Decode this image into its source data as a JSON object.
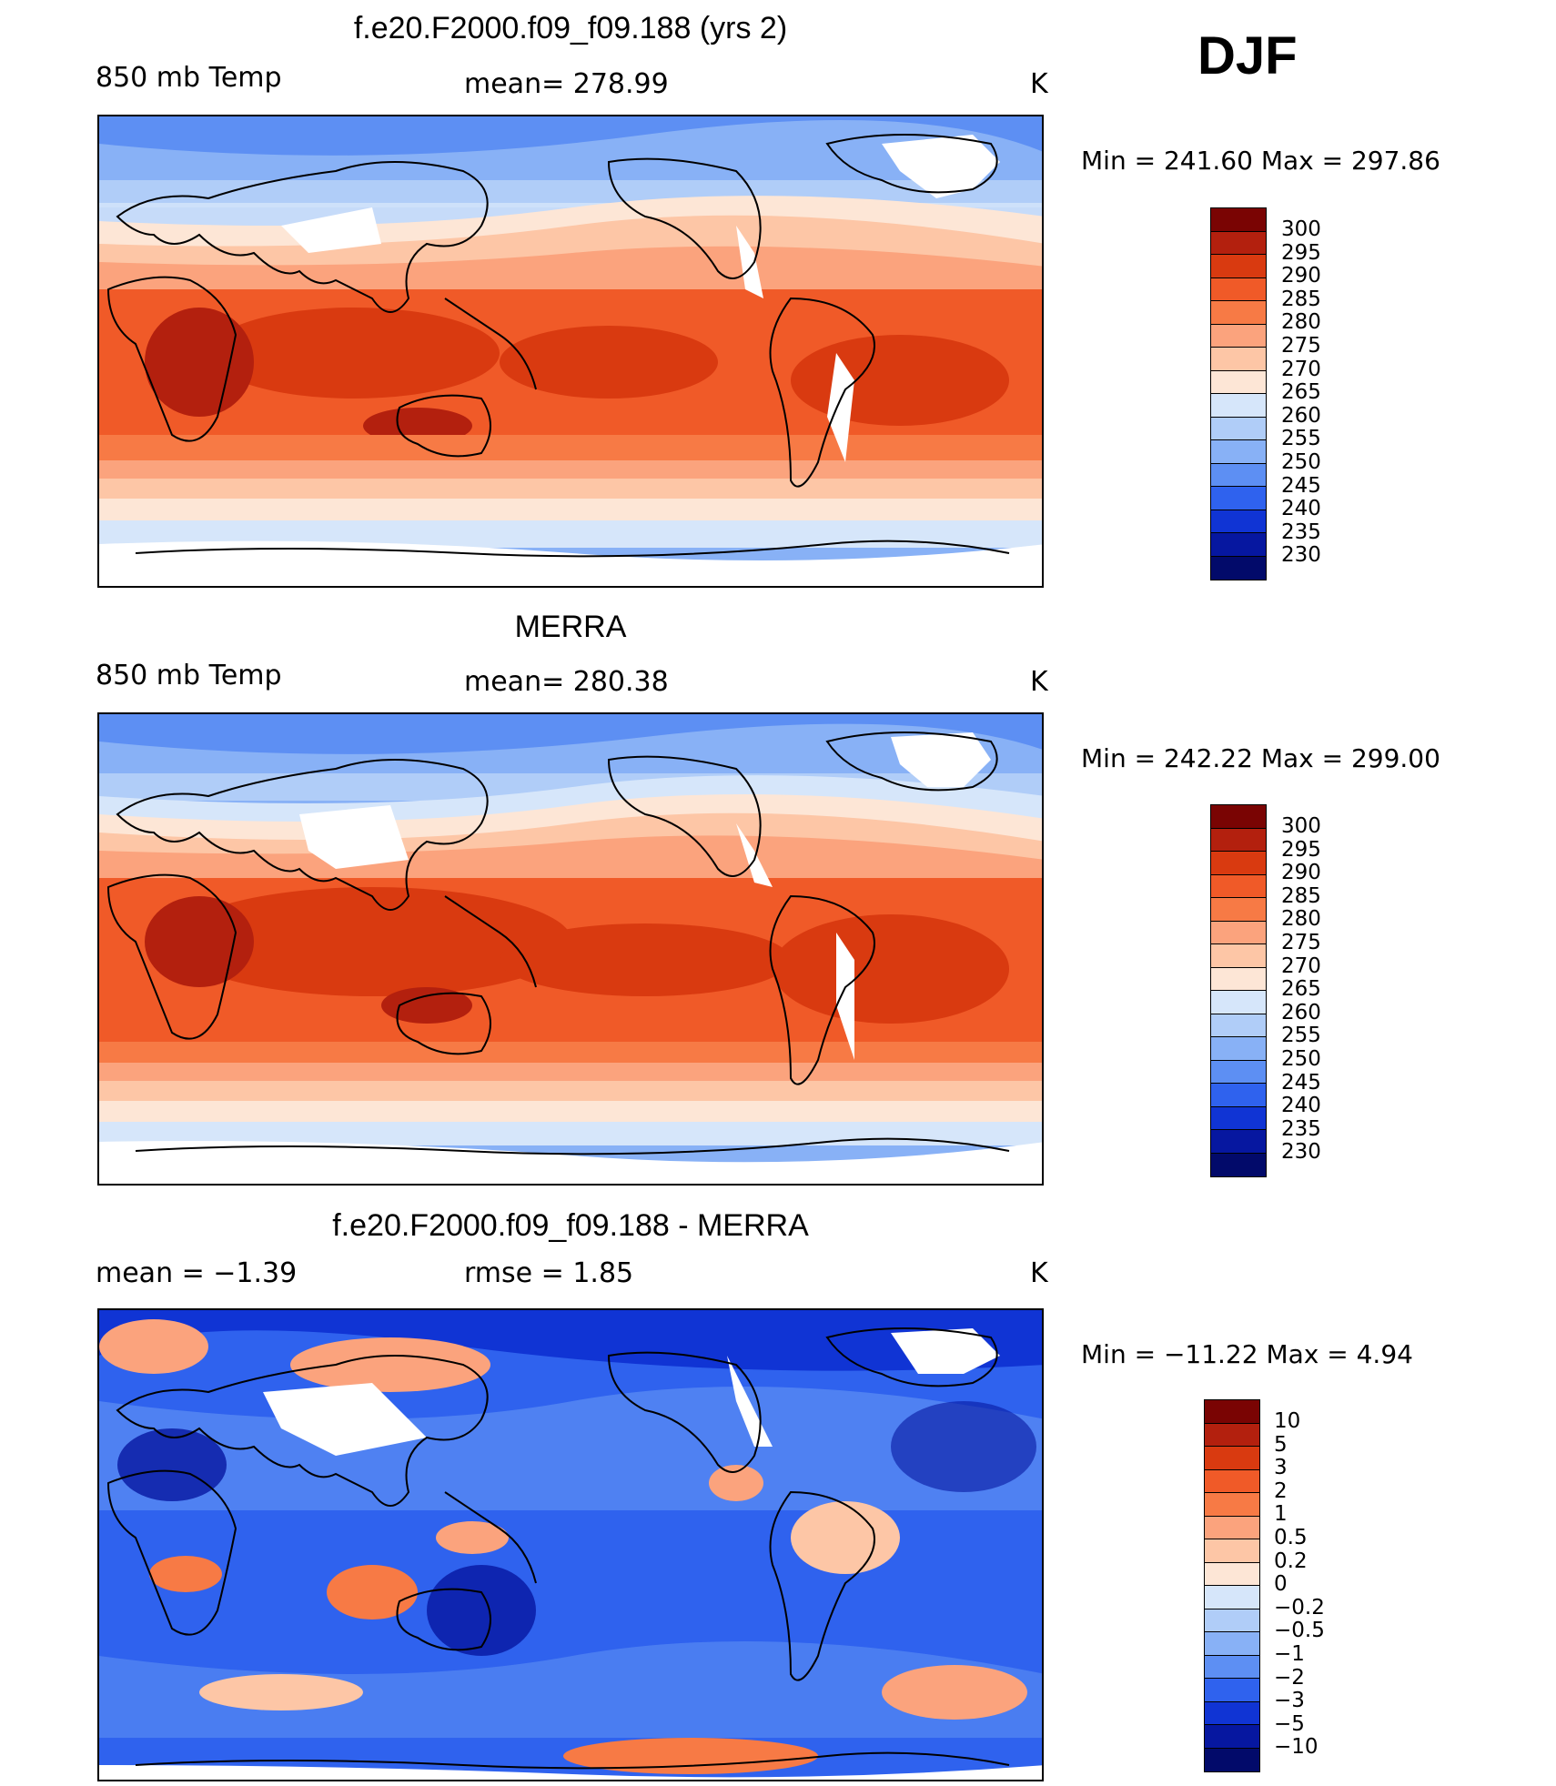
{
  "season": "DJF",
  "panels": [
    {
      "title": "f.e20.F2000.f09_f09.188 (yrs 2)",
      "left_label": "850 mb Temp",
      "center_label": "mean= 278.99",
      "units": "K",
      "min_max": "Min = 241.60 Max = 297.86",
      "colorbar": {
        "labels": [
          "300",
          "295",
          "290",
          "285",
          "280",
          "275",
          "270",
          "265",
          "260",
          "255",
          "250",
          "245",
          "240",
          "235",
          "230"
        ],
        "colors": [
          "#7a0403",
          "#b3200e",
          "#d93a10",
          "#f05a28",
          "#f77a45",
          "#fba37d",
          "#fdc6a6",
          "#fde6d6",
          "#d6e6fa",
          "#b0cdf8",
          "#88b1f6",
          "#5d8ff3",
          "#2f62ee",
          "#1034d4",
          "#0617a0",
          "#020a6a"
        ]
      },
      "chart_data": {
        "type": "filled-contour-map",
        "variable": "850 mb Temperature",
        "units": "K",
        "mean": 278.99,
        "min": 241.6,
        "max": 297.86,
        "contour_levels": [
          230,
          235,
          240,
          245,
          250,
          255,
          260,
          265,
          270,
          275,
          280,
          285,
          290,
          295,
          300
        ]
      }
    },
    {
      "title": "MERRA",
      "left_label": "850 mb Temp",
      "center_label": "mean= 280.38",
      "units": "K",
      "min_max": "Min = 242.22 Max = 299.00",
      "colorbar": {
        "labels": [
          "300",
          "295",
          "290",
          "285",
          "280",
          "275",
          "270",
          "265",
          "260",
          "255",
          "250",
          "245",
          "240",
          "235",
          "230"
        ],
        "colors": [
          "#7a0403",
          "#b3200e",
          "#d93a10",
          "#f05a28",
          "#f77a45",
          "#fba37d",
          "#fdc6a6",
          "#fde6d6",
          "#d6e6fa",
          "#b0cdf8",
          "#88b1f6",
          "#5d8ff3",
          "#2f62ee",
          "#1034d4",
          "#0617a0",
          "#020a6a"
        ]
      },
      "chart_data": {
        "type": "filled-contour-map",
        "variable": "850 mb Temperature",
        "units": "K",
        "mean": 280.38,
        "min": 242.22,
        "max": 299.0,
        "contour_levels": [
          230,
          235,
          240,
          245,
          250,
          255,
          260,
          265,
          270,
          275,
          280,
          285,
          290,
          295,
          300
        ]
      }
    },
    {
      "title": "f.e20.F2000.f09_f09.188 - MERRA",
      "left_label": "mean =   −1.39",
      "center_label": "rmse =    1.85",
      "units": "K",
      "min_max": "Min = −11.22 Max =    4.94",
      "colorbar": {
        "labels": [
          "10",
          "5",
          "3",
          "2",
          "1",
          "0.5",
          "0.2",
          "0",
          "−0.2",
          "−0.5",
          "−1",
          "−2",
          "−3",
          "−5",
          "−10"
        ],
        "colors": [
          "#7a0403",
          "#b3200e",
          "#d93a10",
          "#f05a28",
          "#f77a45",
          "#fba37d",
          "#fdc6a6",
          "#fde6d6",
          "#d6e6fa",
          "#b0cdf8",
          "#88b1f6",
          "#5d8ff3",
          "#2f62ee",
          "#1034d4",
          "#0617a0",
          "#020a6a"
        ]
      },
      "chart_data": {
        "type": "filled-contour-map",
        "variable": "850 mb Temperature difference (model - MERRA)",
        "units": "K",
        "mean": -1.39,
        "rmse": 1.85,
        "min": -11.22,
        "max": 4.94,
        "contour_levels": [
          -10,
          -5,
          -3,
          -2,
          -1,
          -0.5,
          -0.2,
          0,
          0.2,
          0.5,
          1,
          2,
          3,
          5,
          10
        ]
      }
    }
  ]
}
